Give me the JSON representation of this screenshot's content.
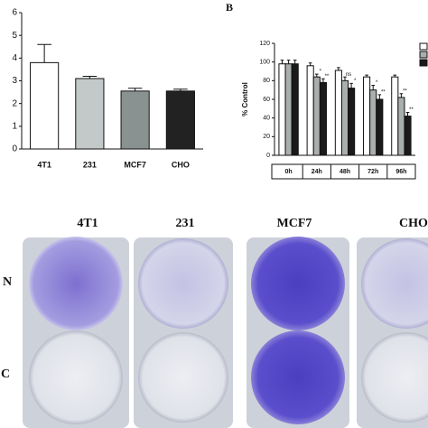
{
  "chart_data": [
    {
      "type": "bar",
      "categories": [
        "4T1",
        "231",
        "MCF7",
        "CHO"
      ],
      "values": [
        3.8,
        3.1,
        2.55,
        2.55
      ],
      "errors": [
        0.8,
        0.1,
        0.12,
        0.08
      ],
      "colors": [
        "#ffffff",
        "#c3c8c8",
        "#8a9191",
        "#222222"
      ],
      "ylim": [
        0,
        6
      ],
      "yticks": [
        0,
        1,
        2,
        3,
        4,
        5,
        6
      ]
    },
    {
      "type": "bar",
      "panel_label": "B",
      "y_label": "% Control",
      "categories": [
        "0h",
        "24h",
        "48h",
        "72h",
        "96h"
      ],
      "series": [
        {
          "color": "#ffffff",
          "values": [
            98,
            96,
            91,
            84,
            84
          ],
          "errors": [
            4,
            3,
            3,
            2,
            2
          ]
        },
        {
          "color": "#a9aeae",
          "values": [
            98,
            84,
            80,
            70,
            62
          ],
          "errors": [
            4,
            3,
            4,
            5,
            4
          ]
        },
        {
          "color": "#1a1a1a",
          "values": [
            98,
            78,
            72,
            60,
            42
          ],
          "errors": [
            4,
            4,
            5,
            5,
            4
          ]
        }
      ],
      "annotations": [
        {
          "text": "*",
          "series": 1,
          "category": 1
        },
        {
          "text": "**",
          "series": 2,
          "category": 1
        },
        {
          "text": "ns",
          "series": 1,
          "category": 2
        },
        {
          "text": "*",
          "series": 2,
          "category": 2
        },
        {
          "text": "*",
          "series": 1,
          "category": 3
        },
        {
          "text": "**",
          "series": 2,
          "category": 3
        },
        {
          "text": "**",
          "series": 1,
          "category": 4
        },
        {
          "text": "**",
          "series": 2,
          "category": 4
        }
      ],
      "ylim": [
        0,
        120
      ],
      "yticks": [
        0,
        20,
        40,
        60,
        80,
        100,
        120
      ],
      "legend": "right"
    }
  ],
  "photos": {
    "columns": [
      "4T1",
      "231",
      "MCF7",
      "CHO"
    ],
    "rows": [
      "N",
      "C"
    ]
  }
}
